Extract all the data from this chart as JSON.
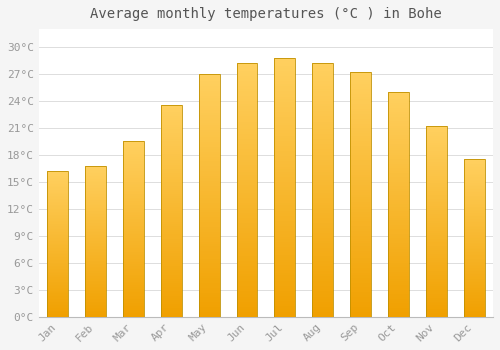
{
  "title": "Average monthly temperatures (°C ) in Bohe",
  "months": [
    "Jan",
    "Feb",
    "Mar",
    "Apr",
    "May",
    "Jun",
    "Jul",
    "Aug",
    "Sep",
    "Oct",
    "Nov",
    "Dec"
  ],
  "values": [
    16.2,
    16.8,
    19.5,
    23.5,
    27.0,
    28.2,
    28.8,
    28.2,
    27.2,
    25.0,
    21.2,
    17.5
  ],
  "bar_color_light": "#FFD060",
  "bar_color_dark": "#F0A000",
  "bar_edge_color": "#C09000",
  "background_color": "#F5F5F5",
  "plot_bg_color": "#FFFFFF",
  "grid_color": "#DDDDDD",
  "yticks": [
    0,
    3,
    6,
    9,
    12,
    15,
    18,
    21,
    24,
    27,
    30
  ],
  "ylim": [
    0,
    32
  ],
  "title_fontsize": 10,
  "tick_fontsize": 8,
  "axis_label_color": "#999999",
  "bar_width": 0.55
}
